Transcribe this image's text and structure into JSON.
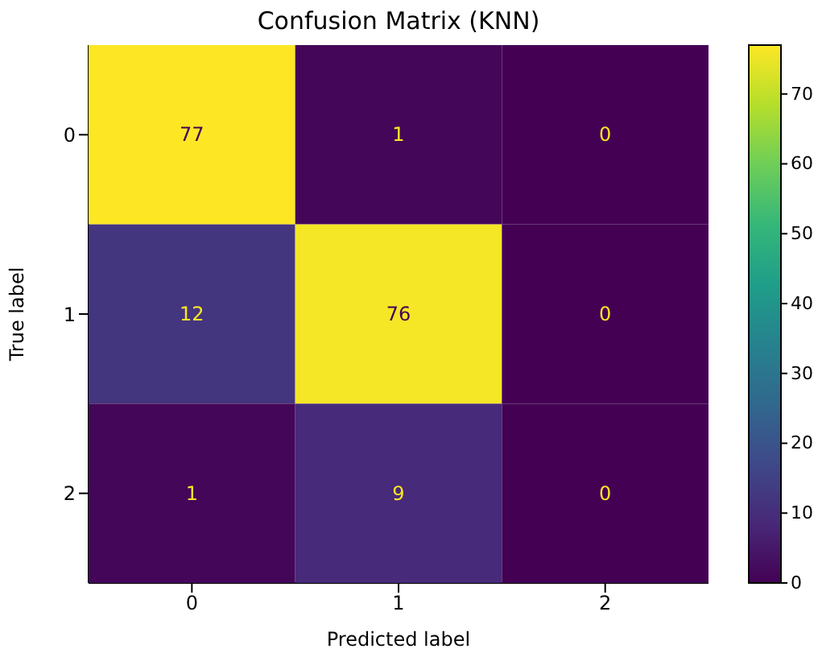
{
  "chart_data": {
    "type": "heatmap",
    "title": "Confusion Matrix (KNN)",
    "xlabel": "Predicted label",
    "ylabel": "True label",
    "categories": [
      "0",
      "1",
      "2"
    ],
    "y_categories": [
      "0",
      "1",
      "2"
    ],
    "cells": [
      [
        77,
        1,
        0
      ],
      [
        12,
        76,
        0
      ],
      [
        1,
        9,
        0
      ]
    ],
    "data_labels": true,
    "clim": [
      0,
      77
    ],
    "cticks": [
      0,
      10,
      20,
      30,
      40,
      50,
      60,
      70
    ]
  }
}
